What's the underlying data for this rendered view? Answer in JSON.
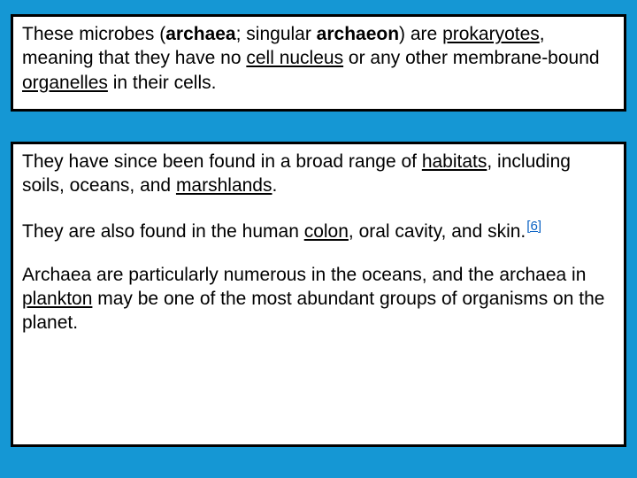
{
  "background_color": "#1597d4",
  "box_border_color": "#000000",
  "box_background": "#ffffff",
  "link_color": "#0b63c4",
  "font_family": "Arial",
  "font_size_pt": 16,
  "box1": {
    "p1": {
      "seg1": " These microbes (",
      "archaea_bold": "archaea",
      "seg2": "; singular ",
      "archaeon_bold": "archaeon",
      "seg3": ") are ",
      "link_prokaryotes": "prokaryotes",
      "seg4": ", meaning that they have no ",
      "link_cell_nucleus": "cell nucleus",
      "seg5": " or any other membrane-bound ",
      "link_organelles": "organelles",
      "seg6": " in their cells."
    }
  },
  "box2": {
    "p1": {
      "seg1": "They have since been found in a broad range of ",
      "link_habitats": "habitats",
      "seg2": ", including soils, oceans, and ",
      "link_marshlands": "marshlands",
      "seg3": "."
    },
    "p2": {
      "seg1": "They are also found in the human ",
      "link_colon": "colon",
      "seg2": ", oral cavity, and skin.",
      "ref6": "[6]"
    },
    "p3": {
      "seg1": "Archaea are particularly numerous in the oceans, and the archaea in ",
      "link_plankton": "plankton",
      "seg2": " may be one of the most abundant groups of organisms on the planet."
    }
  }
}
